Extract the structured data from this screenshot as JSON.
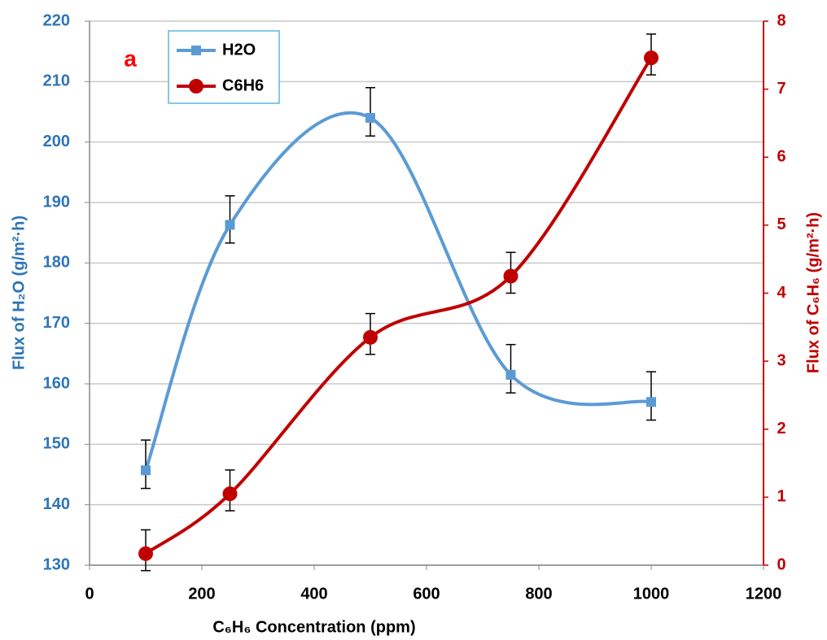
{
  "chart_data": {
    "type": "line",
    "annotation": "a",
    "x_label": "C₆H₆ Concentration (ppm)",
    "y_label": "Flux of H₂O (g/m²·h)",
    "y2_label": "Flux of C₆H₆ (g/m²·h)",
    "x": [
      100,
      250,
      500,
      750,
      1000
    ],
    "xlim": [
      0,
      1200
    ],
    "xticks": [
      0,
      200,
      400,
      600,
      800,
      1000,
      1200
    ],
    "ylim": [
      130,
      220
    ],
    "yticks": [
      130,
      140,
      150,
      160,
      170,
      180,
      190,
      200,
      210,
      220
    ],
    "y2lim": [
      0,
      8
    ],
    "y2ticks": [
      0,
      1,
      2,
      3,
      4,
      5,
      6,
      7,
      8
    ],
    "grid": true,
    "smooth": true,
    "series": [
      {
        "name": "H2O",
        "color": "#5b9bd5",
        "marker": "square",
        "axis": "y",
        "values": [
          145.7,
          186.3,
          204,
          161.5,
          157
        ],
        "error_plus": [
          5,
          4.8,
          5,
          5,
          5
        ],
        "error_minus": [
          3,
          3,
          3,
          3,
          3
        ]
      },
      {
        "name": "C6H6",
        "color": "#c00000",
        "marker": "circle",
        "axis": "y2",
        "values": [
          0.17,
          1.05,
          3.35,
          4.25,
          7.46
        ],
        "error_plus": [
          0.35,
          0.35,
          0.35,
          0.35,
          0.35
        ],
        "error_minus": [
          0.25,
          0.25,
          0.25,
          0.25,
          0.25
        ]
      }
    ]
  }
}
